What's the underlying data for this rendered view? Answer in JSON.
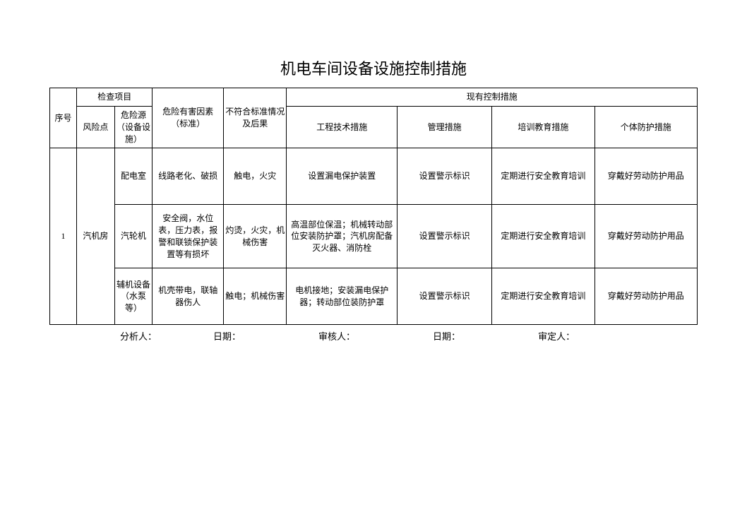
{
  "title": "机电车间设备设施控制措施",
  "headers": {
    "seq": "序号",
    "check_item": "检查项目",
    "risk_point": "风险点",
    "risk_source": "危险源（设备设施）",
    "hazard_factor": "危险有害因素（标准）",
    "nonconform": "不符合标准情况及后果",
    "existing_control": "现有控制措施",
    "eng_measure": "工程技术措施",
    "mgmt_measure": "管理措施",
    "train_measure": "培训教育措施",
    "ppe_measure": "个体防护措施"
  },
  "rows": [
    {
      "seq": "1",
      "risk_point": "汽机房",
      "risk_source": "配电室",
      "hazard_factor": "线路老化、破损",
      "nonconform": "触电，火灾",
      "eng_measure": "设置漏电保护装置",
      "mgmt_measure": "设置警示标识",
      "train_measure": "定期进行安全教育培训",
      "ppe_measure": "穿戴好劳动防护用品"
    },
    {
      "risk_source": "汽轮机",
      "hazard_factor": "安全阀，水位表，压力表，报警和联锁保护装置等有损坏",
      "nonconform": "灼烫，火灾，机械伤害",
      "eng_measure": "高温部位保温；机械转动部位安装防护罩；汽机房配备灭火器、消防栓",
      "mgmt_measure": "设置警示标识",
      "train_measure": "定期进行安全教育培训",
      "ppe_measure": "穿戴好劳动防护用品"
    },
    {
      "risk_source": "辅机设备（水泵等）",
      "hazard_factor": "机壳带电，联轴器伤人",
      "nonconform": "触电；机械伤害",
      "eng_measure": "电机接地；安装漏电保护器；转动部位装防护罩",
      "mgmt_measure": "设置警示标识",
      "train_measure": "定期进行安全教育培训",
      "ppe_measure": "穿戴好劳动防护用品"
    }
  ],
  "footer": {
    "analyst": "分析人：",
    "date1": "日期：",
    "reviewer": "审核人：",
    "date2": "日期：",
    "approver": "审定人："
  }
}
